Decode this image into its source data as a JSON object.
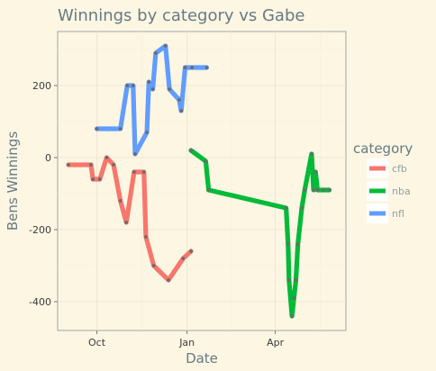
{
  "chart_data": {
    "type": "line",
    "title": "Winnings by category vs Gabe",
    "xlabel": "Date",
    "ylabel": "Bens Winnings",
    "x_axis_type": "date",
    "xlim": [
      "2017-08-22",
      "2018-06-12"
    ],
    "ylim": [
      -480,
      350
    ],
    "x_ticks": [
      {
        "date": "2017-10-01",
        "label": "Oct"
      },
      {
        "date": "2018-01-01",
        "label": "Jan"
      },
      {
        "date": "2018-04-01",
        "label": "Apr"
      }
    ],
    "y_ticks": [
      {
        "value": -400,
        "label": "-400"
      },
      {
        "value": -200,
        "label": "-200"
      },
      {
        "value": 0,
        "label": "0"
      },
      {
        "value": 200,
        "label": "200"
      }
    ],
    "grid": true,
    "legend_title": "category",
    "legend_position": "right",
    "series": [
      {
        "name": "cfb",
        "color": "#f8766d",
        "points": [
          [
            "2017-09-02",
            -20
          ],
          [
            "2017-09-25",
            -20
          ],
          [
            "2017-09-27",
            -60
          ],
          [
            "2017-10-04",
            -60
          ],
          [
            "2017-10-11",
            0
          ],
          [
            "2017-10-18",
            -20
          ],
          [
            "2017-10-25",
            -120
          ],
          [
            "2017-10-31",
            -180
          ],
          [
            "2017-11-08",
            -40
          ],
          [
            "2017-11-18",
            -40
          ],
          [
            "2017-11-20",
            -220
          ],
          [
            "2017-11-28",
            -300
          ],
          [
            "2017-12-13",
            -340
          ],
          [
            "2017-12-28",
            -280
          ],
          [
            "2018-01-05",
            -260
          ]
        ]
      },
      {
        "name": "nba",
        "color": "#00ba38",
        "points": [
          [
            "2018-01-05",
            20
          ],
          [
            "2018-01-20",
            -10
          ],
          [
            "2018-01-23",
            -90
          ],
          [
            "2018-04-12",
            -140
          ],
          [
            "2018-04-14",
            -240
          ],
          [
            "2018-04-15",
            -340
          ],
          [
            "2018-04-18",
            -440
          ],
          [
            "2018-04-20",
            -390
          ],
          [
            "2018-04-22",
            -340
          ],
          [
            "2018-04-24",
            -240
          ],
          [
            "2018-04-28",
            -140
          ],
          [
            "2018-05-01",
            -90
          ],
          [
            "2018-05-08",
            10
          ],
          [
            "2018-05-10",
            -90
          ],
          [
            "2018-05-12",
            -40
          ],
          [
            "2018-05-14",
            -90
          ],
          [
            "2018-05-20",
            -90
          ],
          [
            "2018-05-26",
            -90
          ]
        ]
      },
      {
        "name": "nfl",
        "color": "#619cff",
        "points": [
          [
            "2017-10-01",
            80
          ],
          [
            "2017-10-25",
            80
          ],
          [
            "2017-11-01",
            200
          ],
          [
            "2017-11-07",
            200
          ],
          [
            "2017-11-09",
            10
          ],
          [
            "2017-11-21",
            70
          ],
          [
            "2017-11-23",
            210
          ],
          [
            "2017-11-27",
            190
          ],
          [
            "2017-11-30",
            290
          ],
          [
            "2017-12-10",
            310
          ],
          [
            "2017-12-14",
            190
          ],
          [
            "2017-12-24",
            160
          ],
          [
            "2017-12-26",
            130
          ],
          [
            "2017-12-30",
            250
          ],
          [
            "2018-01-06",
            250
          ],
          [
            "2018-01-21",
            250
          ]
        ]
      }
    ]
  }
}
